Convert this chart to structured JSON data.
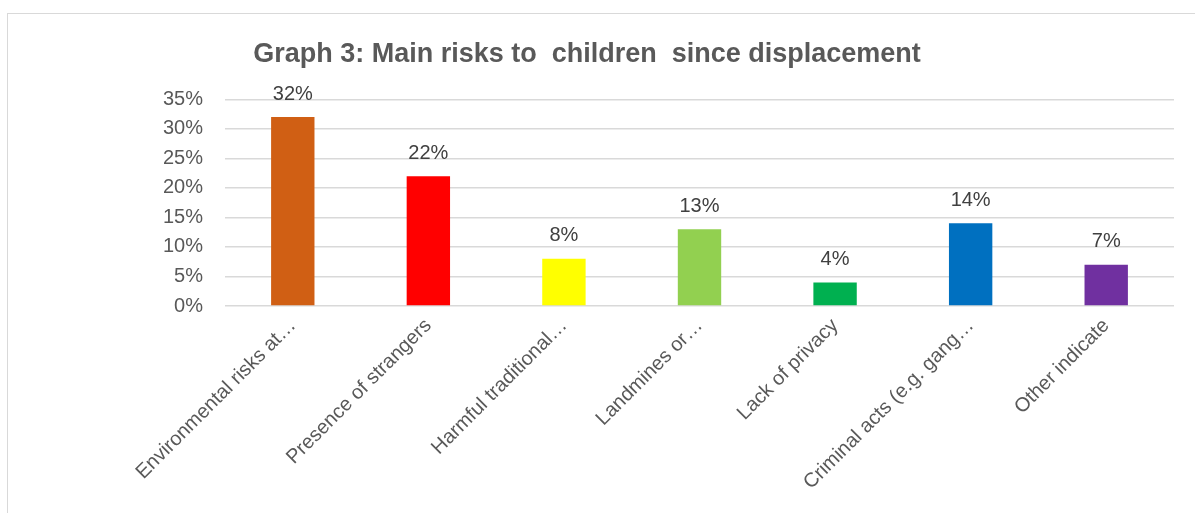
{
  "chart_data": {
    "type": "bar",
    "title": "Graph 3: Main risks to  children  since displacement",
    "categories": [
      "Environmental risks at…",
      "Presence of strangers",
      "Harmful traditional…",
      "Landmines or…",
      "Lack of privacy",
      "Criminal acts (e.g. gang…",
      "Other indicate"
    ],
    "values": [
      32,
      22,
      8,
      13,
      4,
      14,
      7
    ],
    "value_labels": [
      "32%",
      "22%",
      "8%",
      "13%",
      "4%",
      "14%",
      "7%"
    ],
    "colors": [
      "#d05f14",
      "#ff0000",
      "#ffff00",
      "#92d050",
      "#00b050",
      "#0070c0",
      "#7030a0"
    ],
    "ylim": [
      0,
      35
    ],
    "yticks": [
      {
        "value": 0,
        "label": "0%"
      },
      {
        "value": 5,
        "label": "5%"
      },
      {
        "value": 10,
        "label": "10%"
      },
      {
        "value": 15,
        "label": "15%"
      },
      {
        "value": 20,
        "label": "20%"
      },
      {
        "value": 25,
        "label": "25%"
      },
      {
        "value": 30,
        "label": "30%"
      },
      {
        "value": 35,
        "label": "35%"
      }
    ],
    "grid": "y"
  }
}
